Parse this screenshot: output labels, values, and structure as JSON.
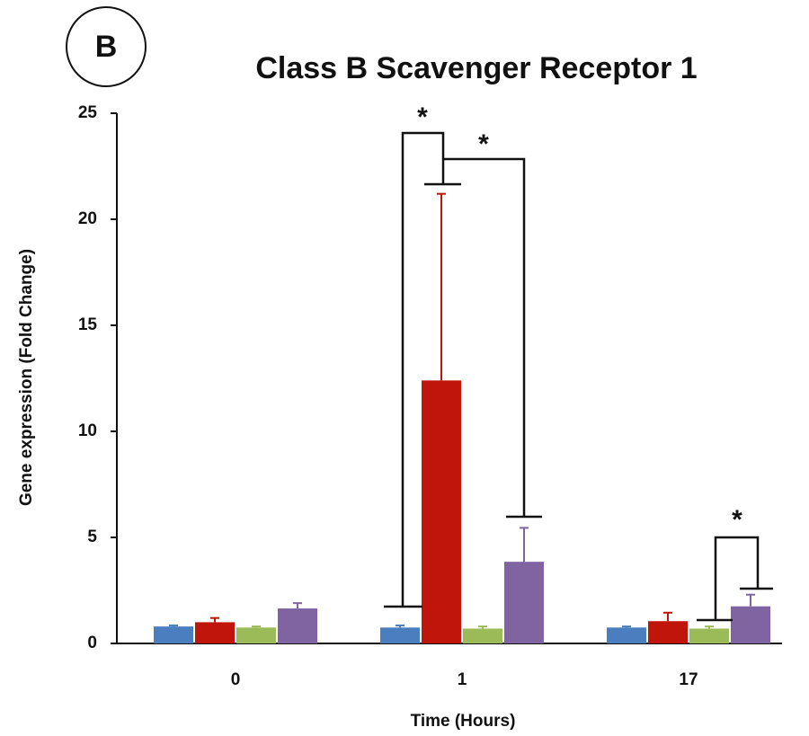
{
  "chart_data": {
    "type": "bar",
    "label": "B",
    "title": "Class B Scavenger Receptor 1",
    "x_label": "Time (Hours)",
    "y_label": "Gene expression (Fold Change)",
    "categories": [
      "0",
      "1",
      "17"
    ],
    "series": [
      {
        "color": "#4a7ebf",
        "values": [
          0.8,
          0.75,
          0.75
        ],
        "errors": [
          0.05,
          0.1,
          0.05
        ]
      },
      {
        "color": "#c0150a",
        "values": [
          1.0,
          12.4,
          1.05
        ],
        "errors": [
          0.2,
          8.8,
          0.4
        ]
      },
      {
        "color": "#9bbb59",
        "values": [
          0.75,
          0.7,
          0.7
        ],
        "errors": [
          0.05,
          0.1,
          0.1
        ]
      },
      {
        "color": "#8064a2",
        "values": [
          1.65,
          3.85,
          1.75
        ],
        "errors": [
          0.25,
          1.6,
          0.55
        ]
      }
    ],
    "annotations": [
      "*",
      "*",
      "*"
    ],
    "ylim": [
      0,
      25
    ],
    "yticks": [
      0,
      5,
      10,
      15,
      20,
      25
    ],
    "grid": false
  }
}
